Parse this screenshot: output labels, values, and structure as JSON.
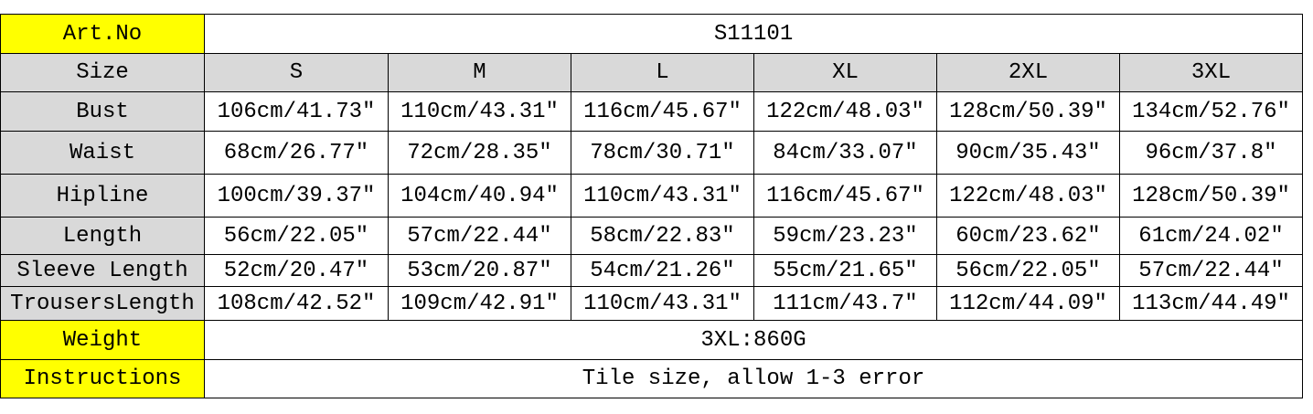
{
  "colors": {
    "highlight": "#ffff00",
    "header": "#d9d9d9"
  },
  "art_no": {
    "label": "Art.No",
    "value": "S11101"
  },
  "size_header": {
    "label": "Size",
    "sizes": [
      "S",
      "M",
      "L",
      "XL",
      "2XL",
      "3XL"
    ]
  },
  "rows": [
    {
      "label": "Bust",
      "values": [
        "106cm/41.73″",
        "110cm/43.31″",
        "116cm/45.67″",
        "122cm/48.03″",
        "128cm/50.39″",
        "134cm/52.76″"
      ]
    },
    {
      "label": "Waist",
      "values": [
        "68cm/26.77″",
        "72cm/28.35″",
        "78cm/30.71″",
        "84cm/33.07″",
        "90cm/35.43″",
        "96cm/37.8″"
      ]
    },
    {
      "label": "Hipline",
      "values": [
        "100cm/39.37″",
        "104cm/40.94″",
        "110cm/43.31″",
        "116cm/45.67″",
        "122cm/48.03″",
        "128cm/50.39″"
      ]
    },
    {
      "label": "Length",
      "values": [
        "56cm/22.05″",
        "57cm/22.44″",
        "58cm/22.83″",
        "59cm/23.23″",
        "60cm/23.62″",
        "61cm/24.02″"
      ]
    },
    {
      "label": "Sleeve Length",
      "values": [
        "52cm/20.47″",
        "53cm/20.87″",
        "54cm/21.26″",
        "55cm/21.65″",
        "56cm/22.05″",
        "57cm/22.44″"
      ]
    },
    {
      "label": "TrousersLength",
      "values": [
        "108cm/42.52″",
        "109cm/42.91″",
        "110cm/43.31″",
        "111cm/43.7″",
        "112cm/44.09″",
        "113cm/44.49″"
      ]
    }
  ],
  "weight": {
    "label": "Weight",
    "value": "3XL:860G"
  },
  "instructions": {
    "label": "Instructions",
    "value": "Tile size, allow 1-3 error"
  }
}
